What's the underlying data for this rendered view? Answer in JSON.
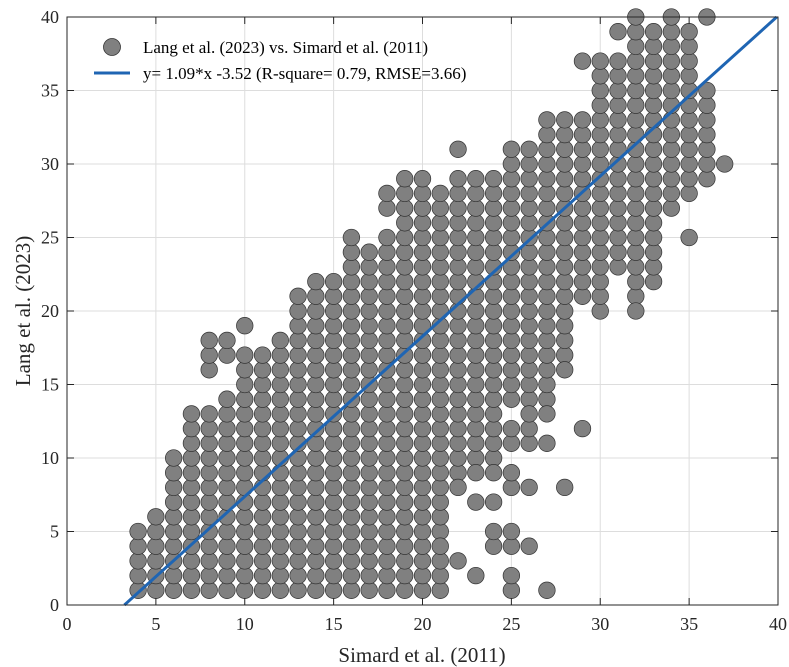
{
  "chart_data": {
    "type": "scatter",
    "xlabel": "Simard  et al. (2011)",
    "ylabel": "Lang et al. (2023)",
    "xlim": [
      0,
      40
    ],
    "ylim": [
      0,
      40
    ],
    "xticks": [
      "0",
      "5",
      "10",
      "15",
      "20",
      "25",
      "30",
      "35",
      "40"
    ],
    "yticks": [
      "0",
      "5",
      "10",
      "15",
      "20",
      "25",
      "30",
      "35",
      "40"
    ],
    "grid": true,
    "legend_position": "top-left",
    "colors": {
      "points": "#808080",
      "point_edge": "#333333",
      "fit_line": "#1f65b3",
      "grid": "#dddddd"
    },
    "series": [
      {
        "name": "Lang et al. (2023) vs. Simard  et al. (2011)",
        "columns": [
          {
            "x": 4,
            "y": [
              1,
              5
            ]
          },
          {
            "x": 5,
            "y": [
              1,
              6
            ]
          },
          {
            "x": 6,
            "y": [
              1,
              10
            ]
          },
          {
            "x": 7,
            "y": [
              1,
              13
            ]
          },
          {
            "x": 8,
            "y": [
              1,
              13
            ]
          },
          {
            "x": 9,
            "y": [
              1,
              14
            ]
          },
          {
            "x": 10,
            "y": [
              1,
              17
            ]
          },
          {
            "x": 11,
            "y": [
              1,
              17
            ]
          },
          {
            "x": 12,
            "y": [
              1,
              18
            ]
          },
          {
            "x": 13,
            "y": [
              1,
              21
            ]
          },
          {
            "x": 14,
            "y": [
              1,
              22
            ]
          },
          {
            "x": 15,
            "y": [
              1,
              22
            ]
          },
          {
            "x": 16,
            "y": [
              1,
              25
            ]
          },
          {
            "x": 17,
            "y": [
              1,
              24
            ]
          },
          {
            "x": 18,
            "y": [
              1,
              25
            ]
          },
          {
            "x": 19,
            "y": [
              1,
              27
            ]
          },
          {
            "x": 20,
            "y": [
              1,
              27
            ]
          },
          {
            "x": 21,
            "y": [
              5,
              28
            ]
          },
          {
            "x": 22,
            "y": [
              9,
              29
            ]
          },
          {
            "x": 23,
            "y": [
              10,
              29
            ]
          },
          {
            "x": 24,
            "y": [
              10,
              29
            ]
          },
          {
            "x": 25,
            "y": [
              14,
              31
            ]
          },
          {
            "x": 26,
            "y": [
              14,
              31
            ]
          },
          {
            "x": 27,
            "y": [
              14,
              33
            ]
          },
          {
            "x": 28,
            "y": [
              17,
              33
            ]
          },
          {
            "x": 29,
            "y": [
              21,
              33
            ]
          },
          {
            "x": 30,
            "y": [
              20,
              36
            ]
          },
          {
            "x": 31,
            "y": [
              23,
              36
            ]
          },
          {
            "x": 32,
            "y": [
              21,
              36
            ]
          },
          {
            "x": 33,
            "y": [
              22,
              36
            ]
          },
          {
            "x": 34,
            "y": [
              27,
              36
            ]
          },
          {
            "x": 35,
            "y": [
              28,
              36
            ]
          },
          {
            "x": 36,
            "y": [
              29,
              35
            ]
          }
        ],
        "extra_points": [
          [
            8,
            16
          ],
          [
            8,
            17
          ],
          [
            8,
            18
          ],
          [
            9,
            17
          ],
          [
            9,
            18
          ],
          [
            10,
            19
          ],
          [
            16,
            24
          ],
          [
            16,
            25
          ],
          [
            18,
            27
          ],
          [
            18,
            28
          ],
          [
            19,
            28
          ],
          [
            19,
            29
          ],
          [
            20,
            28
          ],
          [
            20,
            29
          ],
          [
            22,
            31
          ],
          [
            24,
            28
          ],
          [
            24,
            29
          ],
          [
            21,
            1
          ],
          [
            21,
            2
          ],
          [
            21,
            3
          ],
          [
            21,
            4
          ],
          [
            22,
            3
          ],
          [
            22,
            8
          ],
          [
            23,
            2
          ],
          [
            23,
            7
          ],
          [
            23,
            9
          ],
          [
            24,
            4
          ],
          [
            24,
            5
          ],
          [
            24,
            7
          ],
          [
            24,
            9
          ],
          [
            25,
            1
          ],
          [
            25,
            2
          ],
          [
            25,
            4
          ],
          [
            25,
            5
          ],
          [
            25,
            8
          ],
          [
            25,
            9
          ],
          [
            25,
            11
          ],
          [
            25,
            12
          ],
          [
            26,
            4
          ],
          [
            26,
            8
          ],
          [
            26,
            11
          ],
          [
            26,
            12
          ],
          [
            26,
            13
          ],
          [
            27,
            1
          ],
          [
            27,
            11
          ],
          [
            27,
            13
          ],
          [
            27,
            16
          ],
          [
            27,
            18
          ],
          [
            28,
            8
          ],
          [
            28,
            16
          ],
          [
            29,
            12
          ],
          [
            29,
            22
          ],
          [
            30,
            37
          ],
          [
            31,
            37
          ],
          [
            31,
            39
          ],
          [
            32,
            20
          ],
          [
            32,
            37
          ],
          [
            32,
            38
          ],
          [
            32,
            39
          ],
          [
            32,
            40
          ],
          [
            33,
            37
          ],
          [
            33,
            38
          ],
          [
            33,
            39
          ],
          [
            34,
            37
          ],
          [
            34,
            38
          ],
          [
            34,
            39
          ],
          [
            34,
            40
          ],
          [
            35,
            25
          ],
          [
            35,
            37
          ],
          [
            35,
            38
          ],
          [
            35,
            39
          ],
          [
            36,
            30
          ],
          [
            36,
            33
          ],
          [
            36,
            40
          ],
          [
            37,
            30
          ],
          [
            29,
            37
          ],
          [
            27,
            31
          ],
          [
            28,
            32
          ]
        ]
      },
      {
        "name": "y= 1.09*x -3.52 (R-square= 0.79,  RMSE=3.66)",
        "type": "line",
        "slope": 1.09,
        "intercept": -3.52,
        "x_range": [
          3.23,
          40
        ]
      }
    ]
  }
}
